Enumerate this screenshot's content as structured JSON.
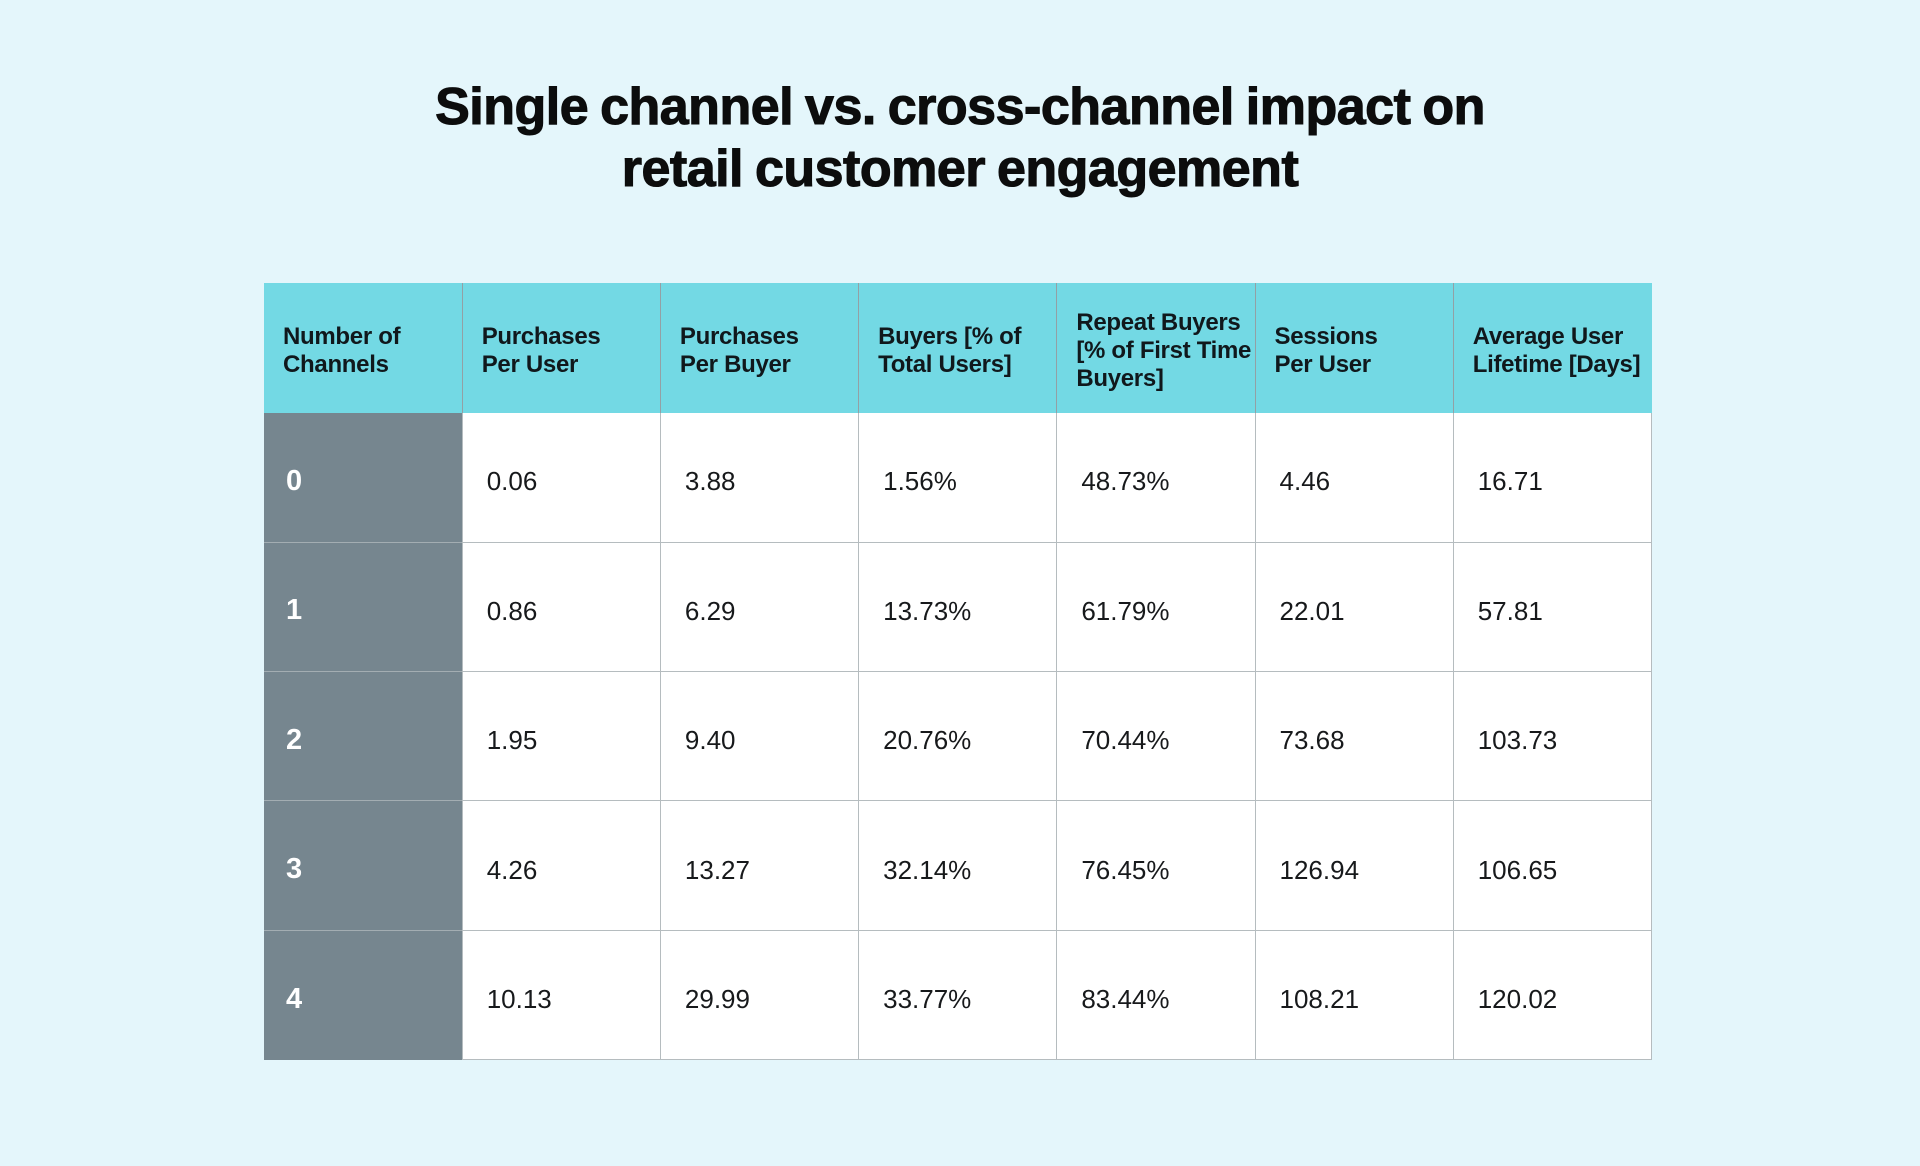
{
  "title": "Single channel vs. cross-channel impact on\nretail customer engagement",
  "colors": {
    "page_background": "#e4f6fb",
    "header_background": "#73d9e4",
    "row_label_background": "#76868f",
    "cell_background": "#ffffff",
    "title_text": "#0c0d0d",
    "cell_border": "#b5bcbf"
  },
  "chart_data": {
    "type": "table",
    "title": "Single channel vs. cross-channel impact on retail customer engagement",
    "columns": [
      "Number of Channels",
      "Purchases Per User",
      "Purchases Per Buyer",
      "Buyers [% of Total Users]",
      "Repeat Buyers [% of First Time Buyers]",
      "Sessions Per User",
      "Average User Lifetime [Days]"
    ],
    "rows": [
      [
        0,
        0.06,
        3.88,
        "1.56%",
        "48.73%",
        4.46,
        16.71
      ],
      [
        1,
        0.86,
        6.29,
        "13.73%",
        "61.79%",
        22.01,
        57.81
      ],
      [
        2,
        1.95,
        9.4,
        "20.76%",
        "70.44%",
        73.68,
        103.73
      ],
      [
        3,
        4.26,
        13.27,
        "32.14%",
        "76.45%",
        126.94,
        106.65
      ],
      [
        4,
        10.13,
        29.99,
        "33.77%",
        "83.44%",
        108.21,
        120.02
      ]
    ]
  },
  "table": {
    "headers": [
      [
        "Number of",
        "Channels"
      ],
      [
        "Purchases",
        "Per User"
      ],
      [
        "Purchases",
        "Per Buyer"
      ],
      [
        "Buyers [% of",
        "Total Users]"
      ],
      [
        "Repeat Buyers",
        "[% of First Time",
        "Buyers]"
      ],
      [
        "Sessions",
        "Per User"
      ],
      [
        "Average User",
        "Lifetime [Days]"
      ]
    ],
    "rows": [
      {
        "label": "0",
        "values": [
          "0.06",
          "3.88",
          "1.56%",
          "48.73%",
          "4.46",
          "16.71"
        ]
      },
      {
        "label": "1",
        "values": [
          "0.86",
          "6.29",
          "13.73%",
          "61.79%",
          "22.01",
          "57.81"
        ]
      },
      {
        "label": "2",
        "values": [
          "1.95",
          "9.40",
          "20.76%",
          "70.44%",
          "73.68",
          "103.73"
        ]
      },
      {
        "label": "3",
        "values": [
          "4.26",
          "13.27",
          "32.14%",
          "76.45%",
          "126.94",
          "106.65"
        ]
      },
      {
        "label": "4",
        "values": [
          "10.13",
          "29.99",
          "33.77%",
          "83.44%",
          "108.21",
          "120.02"
        ]
      }
    ]
  }
}
